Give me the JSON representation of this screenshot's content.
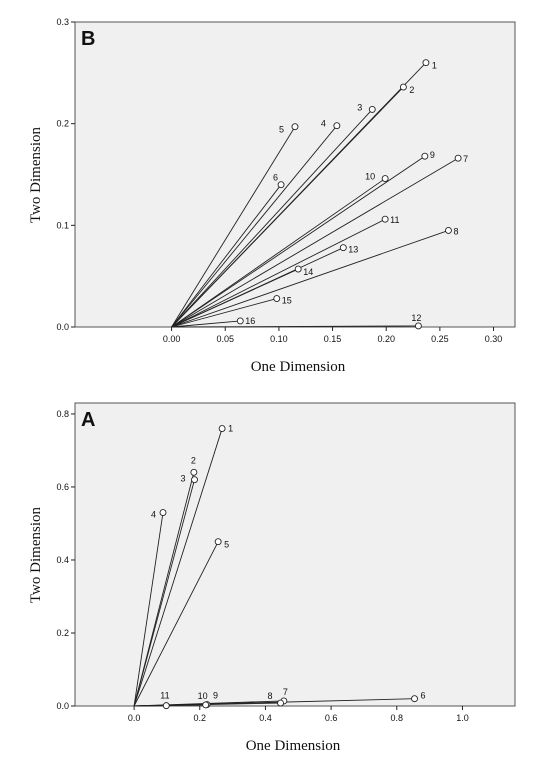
{
  "chart_data": [
    {
      "type": "scatter",
      "panel": "B",
      "xlabel": "One Dimension",
      "ylabel": "Two Dimension",
      "xlim": [
        -0.09,
        0.32
      ],
      "ylim": [
        0,
        0.3
      ],
      "xticks": [
        0.0,
        0.05,
        0.1,
        0.15,
        0.2,
        0.25,
        0.3
      ],
      "xticklabels": [
        "0.00",
        "0.05",
        "0.10",
        "0.15",
        "0.20",
        "0.25",
        "0.30"
      ],
      "yticks": [
        0.0,
        0.1,
        0.2,
        0.3
      ],
      "yticklabels": [
        "0.0",
        "0.1",
        "0.2",
        "0.3"
      ],
      "vectors_from_origin": true,
      "points": [
        {
          "label": "1",
          "x": 0.237,
          "y": 0.26
        },
        {
          "label": "2",
          "x": 0.216,
          "y": 0.236
        },
        {
          "label": "3",
          "x": 0.187,
          "y": 0.214
        },
        {
          "label": "4",
          "x": 0.154,
          "y": 0.198
        },
        {
          "label": "5",
          "x": 0.115,
          "y": 0.197
        },
        {
          "label": "6",
          "x": 0.102,
          "y": 0.14
        },
        {
          "label": "7",
          "x": 0.267,
          "y": 0.166
        },
        {
          "label": "8",
          "x": 0.258,
          "y": 0.095
        },
        {
          "label": "9",
          "x": 0.236,
          "y": 0.168
        },
        {
          "label": "10",
          "x": 0.199,
          "y": 0.146
        },
        {
          "label": "11",
          "x": 0.199,
          "y": 0.106
        },
        {
          "label": "12",
          "x": 0.23,
          "y": 0.001
        },
        {
          "label": "13",
          "x": 0.16,
          "y": 0.078
        },
        {
          "label": "14",
          "x": 0.118,
          "y": 0.057
        },
        {
          "label": "15",
          "x": 0.098,
          "y": 0.028
        },
        {
          "label": "16",
          "x": 0.064,
          "y": 0.006
        }
      ]
    },
    {
      "type": "scatter",
      "panel": "A",
      "xlabel": "One Dimension",
      "ylabel": "Two Dimension",
      "xlim": [
        -0.18,
        1.16
      ],
      "ylim": [
        0,
        0.83
      ],
      "xticks": [
        0.0,
        0.2,
        0.4,
        0.6,
        0.8,
        1.0
      ],
      "xticklabels": [
        "0.0",
        "0.2",
        "0.4",
        "0.6",
        "0.8",
        "1.0"
      ],
      "yticks": [
        0.0,
        0.2,
        0.4,
        0.6,
        0.8
      ],
      "yticklabels": [
        "0.0",
        "0.2",
        "0.4",
        "0.6",
        "0.8"
      ],
      "vectors_from_origin": true,
      "points": [
        {
          "label": "1",
          "x": 0.268,
          "y": 0.76
        },
        {
          "label": "2",
          "x": 0.182,
          "y": 0.64
        },
        {
          "label": "3",
          "x": 0.184,
          "y": 0.62
        },
        {
          "label": "4",
          "x": 0.088,
          "y": 0.53
        },
        {
          "label": "5",
          "x": 0.256,
          "y": 0.45
        },
        {
          "label": "6",
          "x": 0.854,
          "y": 0.02
        },
        {
          "label": "7",
          "x": 0.456,
          "y": 0.014
        },
        {
          "label": "8",
          "x": 0.446,
          "y": 0.008
        },
        {
          "label": "9",
          "x": 0.222,
          "y": 0.004
        },
        {
          "label": "10",
          "x": 0.218,
          "y": 0.003
        },
        {
          "label": "11",
          "x": 0.098,
          "y": 0.001
        }
      ]
    }
  ]
}
